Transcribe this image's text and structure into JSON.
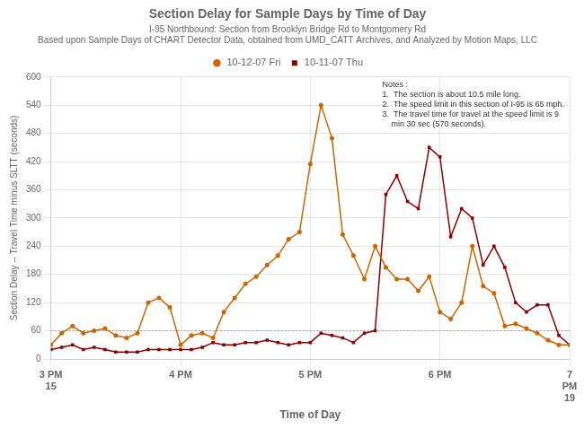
{
  "chart_data": {
    "type": "line",
    "title": "Section Delay for Sample Days by Time of Day",
    "subtitle": [
      "I-95 Northbound: Section from Brooklyn Bridge Rd to Montgomery Rd",
      "Based upon Sample Days of CHART Detector Data, obtained from UMD_CATT Archives, and Analyzed by Motion Maps, LLC"
    ],
    "x_label": "Time of Day",
    "y_label": "Section Delay -- Travel Time minus SLTT (seconds)",
    "notes": "Notes :\n1.  The section is about 10.5 mile long.\n2.  The speed limit in this section of I-95 is 65 mph.\n3.  The travel time for travel at the speed limit is 9\n    min 30 sec (570 seconds).",
    "annotations": [
      {
        "text": "15",
        "x": 15
      },
      {
        "text": "19",
        "x": 19
      }
    ],
    "x": [
      15.0,
      15.083,
      15.167,
      15.25,
      15.333,
      15.417,
      15.5,
      15.583,
      15.667,
      15.75,
      15.833,
      15.917,
      16.0,
      16.083,
      16.167,
      16.25,
      16.333,
      16.417,
      16.5,
      16.583,
      16.667,
      16.75,
      16.833,
      16.917,
      17.0,
      17.083,
      17.167,
      17.25,
      17.333,
      17.417,
      17.5,
      17.583,
      17.667,
      17.75,
      17.833,
      17.917,
      18.0,
      18.083,
      18.167,
      18.25,
      18.333,
      18.417,
      18.5,
      18.583,
      18.667,
      18.75,
      18.833,
      18.917,
      19.0
    ],
    "series": [
      {
        "name": "10-12-07 Fri",
        "color": "#cc6600",
        "marker": "circle",
        "values": [
          30,
          55,
          70,
          55,
          60,
          65,
          50,
          45,
          55,
          120,
          130,
          110,
          30,
          50,
          55,
          45,
          100,
          130,
          160,
          175,
          200,
          220,
          255,
          270,
          415,
          540,
          470,
          265,
          220,
          170,
          240,
          195,
          170,
          170,
          145,
          175,
          100,
          85,
          120,
          240,
          155,
          140,
          70,
          75,
          65,
          55,
          40,
          30,
          30
        ]
      },
      {
        "name": "10-11-07 Thu",
        "color": "#8b0000",
        "marker": "square",
        "values": [
          20,
          25,
          30,
          20,
          25,
          20,
          15,
          15,
          15,
          20,
          20,
          20,
          20,
          20,
          25,
          35,
          30,
          30,
          35,
          35,
          40,
          35,
          30,
          35,
          35,
          55,
          50,
          45,
          35,
          55,
          60,
          350,
          390,
          335,
          320,
          450,
          430,
          260,
          320,
          300,
          200,
          240,
          195,
          120,
          100,
          115,
          115,
          50,
          30
        ]
      }
    ],
    "reference_line": 60,
    "xlim": [
      15,
      19
    ],
    "xticks": [
      {
        "value": 15,
        "label": "3 PM"
      },
      {
        "value": 16,
        "label": "4 PM"
      },
      {
        "value": 17,
        "label": "5 PM"
      },
      {
        "value": 18,
        "label": "6 PM"
      },
      {
        "value": 19,
        "label": "7\nPM"
      }
    ],
    "ylim": [
      0,
      600
    ],
    "yticks": [
      0,
      60,
      120,
      180,
      240,
      300,
      360,
      420,
      480,
      540,
      600
    ],
    "grid": true,
    "legend": "top"
  }
}
